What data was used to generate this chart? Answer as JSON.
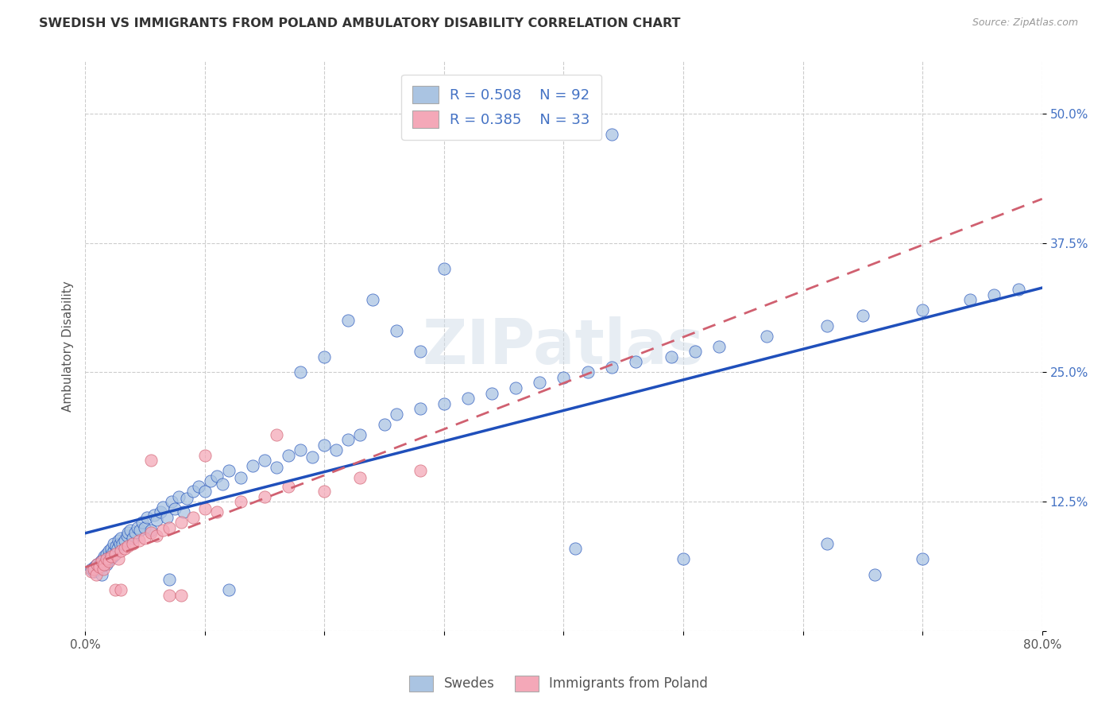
{
  "title": "SWEDISH VS IMMIGRANTS FROM POLAND AMBULATORY DISABILITY CORRELATION CHART",
  "source": "Source: ZipAtlas.com",
  "ylabel": "Ambulatory Disability",
  "xlabel": "",
  "xlim": [
    0.0,
    0.8
  ],
  "ylim": [
    0.0,
    0.55
  ],
  "xticks": [
    0.0,
    0.1,
    0.2,
    0.3,
    0.4,
    0.5,
    0.6,
    0.7,
    0.8
  ],
  "xticklabels": [
    "0.0%",
    "",
    "",
    "",
    "",
    "",
    "",
    "",
    "80.0%"
  ],
  "ytick_positions": [
    0.0,
    0.125,
    0.25,
    0.375,
    0.5
  ],
  "ytick_labels": [
    "",
    "12.5%",
    "25.0%",
    "37.5%",
    "50.0%"
  ],
  "legend_r1": "R = 0.508",
  "legend_n1": "N = 92",
  "legend_r2": "R = 0.385",
  "legend_n2": "N = 33",
  "color_blue": "#aac4e2",
  "color_pink": "#f4a8b8",
  "color_blue_text": "#4472c4",
  "trendline_blue": "#1f4fbb",
  "trendline_pink": "#d06070",
  "watermark": "ZIPatlas",
  "swedes_x": [
    0.005,
    0.007,
    0.008,
    0.01,
    0.011,
    0.012,
    0.013,
    0.014,
    0.015,
    0.015,
    0.016,
    0.017,
    0.018,
    0.018,
    0.019,
    0.02,
    0.02,
    0.021,
    0.022,
    0.022,
    0.023,
    0.024,
    0.024,
    0.025,
    0.026,
    0.027,
    0.028,
    0.029,
    0.03,
    0.031,
    0.033,
    0.035,
    0.036,
    0.038,
    0.04,
    0.042,
    0.044,
    0.046,
    0.048,
    0.05,
    0.052,
    0.055,
    0.058,
    0.06,
    0.063,
    0.065,
    0.068,
    0.072,
    0.075,
    0.078,
    0.082,
    0.085,
    0.09,
    0.095,
    0.1,
    0.105,
    0.11,
    0.115,
    0.12,
    0.13,
    0.14,
    0.15,
    0.16,
    0.17,
    0.18,
    0.19,
    0.2,
    0.21,
    0.22,
    0.23,
    0.25,
    0.26,
    0.28,
    0.3,
    0.32,
    0.34,
    0.36,
    0.38,
    0.4,
    0.42,
    0.44,
    0.46,
    0.49,
    0.51,
    0.53,
    0.57,
    0.62,
    0.65,
    0.7,
    0.74,
    0.76,
    0.78
  ],
  "swedes_y": [
    0.06,
    0.058,
    0.062,
    0.065,
    0.063,
    0.06,
    0.068,
    0.055,
    0.07,
    0.065,
    0.072,
    0.068,
    0.065,
    0.075,
    0.07,
    0.073,
    0.078,
    0.07,
    0.075,
    0.08,
    0.072,
    0.078,
    0.085,
    0.075,
    0.082,
    0.08,
    0.088,
    0.085,
    0.09,
    0.085,
    0.088,
    0.092,
    0.095,
    0.098,
    0.09,
    0.095,
    0.1,
    0.098,
    0.105,
    0.1,
    0.11,
    0.098,
    0.112,
    0.108,
    0.115,
    0.12,
    0.11,
    0.125,
    0.118,
    0.13,
    0.115,
    0.128,
    0.135,
    0.14,
    0.135,
    0.145,
    0.15,
    0.142,
    0.155,
    0.148,
    0.16,
    0.165,
    0.158,
    0.17,
    0.175,
    0.168,
    0.18,
    0.175,
    0.185,
    0.19,
    0.2,
    0.21,
    0.215,
    0.22,
    0.225,
    0.23,
    0.235,
    0.24,
    0.245,
    0.25,
    0.255,
    0.26,
    0.265,
    0.27,
    0.275,
    0.285,
    0.295,
    0.305,
    0.31,
    0.32,
    0.325,
    0.33
  ],
  "swedes_y_outliers": [
    [
      0.44,
      0.48
    ],
    [
      0.3,
      0.35
    ],
    [
      0.24,
      0.32
    ],
    [
      0.22,
      0.3
    ],
    [
      0.26,
      0.29
    ],
    [
      0.28,
      0.27
    ],
    [
      0.2,
      0.265
    ],
    [
      0.18,
      0.25
    ],
    [
      0.07,
      0.05
    ],
    [
      0.12,
      0.04
    ],
    [
      0.41,
      0.08
    ],
    [
      0.5,
      0.07
    ],
    [
      0.62,
      0.085
    ],
    [
      0.66,
      0.055
    ],
    [
      0.7,
      0.07
    ]
  ],
  "poland_x": [
    0.005,
    0.007,
    0.009,
    0.01,
    0.012,
    0.014,
    0.015,
    0.016,
    0.018,
    0.02,
    0.022,
    0.025,
    0.028,
    0.03,
    0.033,
    0.036,
    0.04,
    0.045,
    0.05,
    0.055,
    0.06,
    0.065,
    0.07,
    0.08,
    0.09,
    0.1,
    0.11,
    0.13,
    0.15,
    0.17,
    0.2,
    0.23,
    0.28
  ],
  "poland_y": [
    0.058,
    0.06,
    0.055,
    0.065,
    0.062,
    0.068,
    0.06,
    0.065,
    0.07,
    0.068,
    0.072,
    0.075,
    0.07,
    0.078,
    0.08,
    0.082,
    0.085,
    0.088,
    0.09,
    0.095,
    0.092,
    0.098,
    0.1,
    0.105,
    0.11,
    0.118,
    0.115,
    0.125,
    0.13,
    0.14,
    0.135,
    0.148,
    0.155
  ],
  "poland_outliers": [
    [
      0.16,
      0.19
    ],
    [
      0.1,
      0.17
    ],
    [
      0.055,
      0.165
    ],
    [
      0.07,
      0.035
    ],
    [
      0.08,
      0.035
    ],
    [
      0.025,
      0.04
    ],
    [
      0.03,
      0.04
    ]
  ]
}
